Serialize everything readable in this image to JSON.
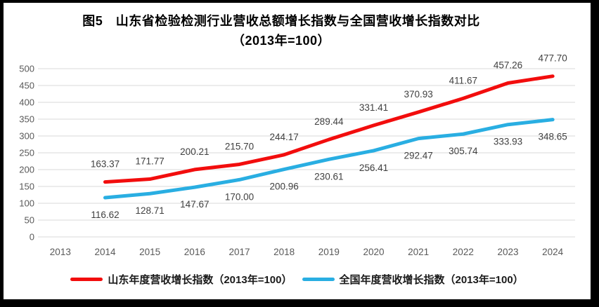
{
  "title": {
    "line1": "图5　山东省检验检测行业营收总额增长指数与全国营收增长指数对比",
    "line2": "（2013年=100）"
  },
  "chart_data": {
    "type": "line",
    "title": "图5 山东省检验检测行业营收总额增长指数与全国营收增长指数对比（2013年=100）",
    "categories": [
      "2013",
      "2014",
      "2015",
      "2016",
      "2017",
      "2018",
      "2019",
      "2020",
      "2021",
      "2022",
      "2023",
      "2024"
    ],
    "ylim": [
      0,
      500
    ],
    "ytick_step": 50,
    "grid": true,
    "legend_position": "bottom",
    "series": [
      {
        "name": "山东年度营收增长指数（2013年=100）",
        "color": "#F20D0D",
        "label_side": "above",
        "values": [
          null,
          163.37,
          171.77,
          200.21,
          215.7,
          244.17,
          289.44,
          331.41,
          370.93,
          411.67,
          457.26,
          477.7
        ],
        "labels": [
          null,
          "163.37",
          "171.77",
          "200.21",
          "215.70",
          "244.17",
          "289.44",
          "331.41",
          "370.93",
          "411.67",
          "457.26",
          "477.70"
        ]
      },
      {
        "name": "全国年度营收增长指数（2013年=100）",
        "color": "#29AEE2",
        "label_side": "below",
        "values": [
          null,
          116.62,
          128.71,
          147.67,
          170.0,
          200.96,
          230.61,
          256.41,
          292.47,
          305.74,
          333.93,
          348.65
        ],
        "labels": [
          null,
          "116.62",
          "128.71",
          "147.67",
          "170.00",
          "200.96",
          "230.61",
          "256.41",
          "292.47",
          "305.74",
          "333.93",
          "348.65"
        ]
      }
    ],
    "colors": {
      "gridline": "#D9D9D9",
      "tick_label": "#595959",
      "data_label": "#404040",
      "background": "#FFFFFF",
      "frame": "#000000"
    }
  }
}
